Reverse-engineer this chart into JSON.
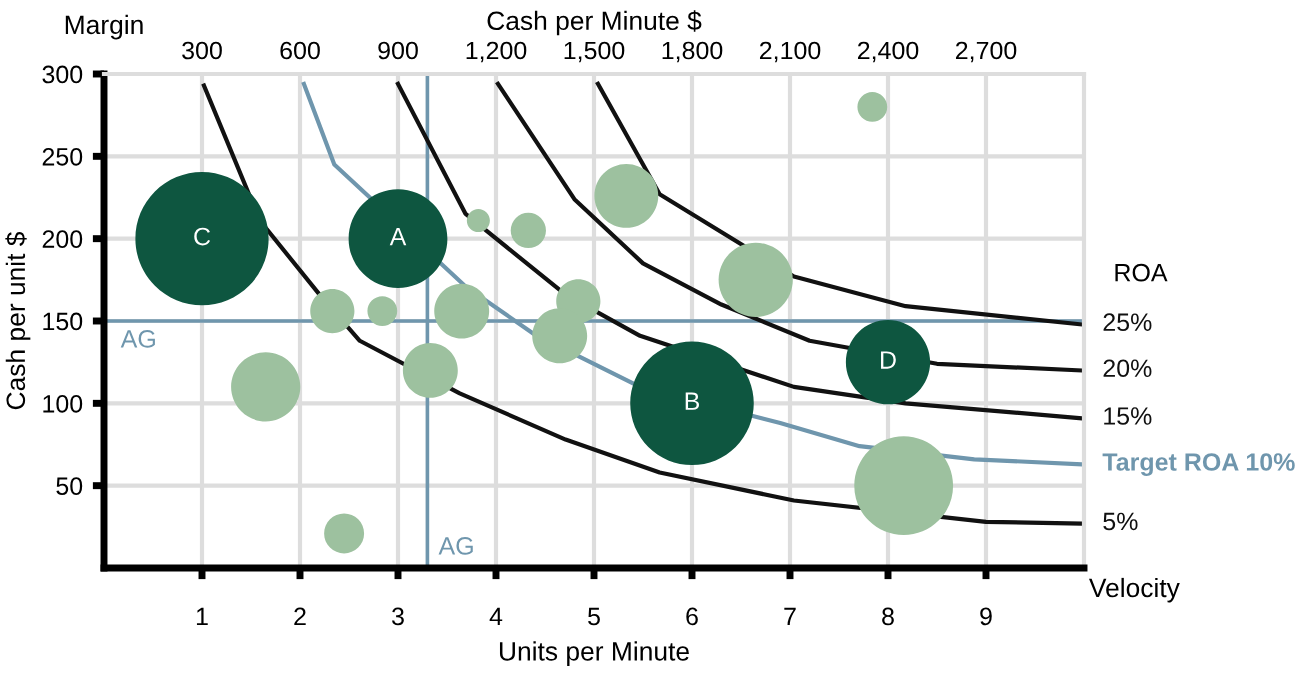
{
  "chart_data": {
    "type": "bubble",
    "xlabel": "Units per Minute",
    "ylabel": "Cash per unit $",
    "x2label": "Cash per Minute $",
    "xlim": [
      0,
      10
    ],
    "xticks": [
      1,
      2,
      3,
      4,
      5,
      6,
      7,
      8,
      9
    ],
    "ylim": [
      0,
      300
    ],
    "yticks": [
      50,
      100,
      150,
      200,
      250,
      300
    ],
    "x2lim": [
      0,
      3000
    ],
    "x2ticks": [
      {
        "value": 300,
        "label": "300"
      },
      {
        "value": 600,
        "label": "600"
      },
      {
        "value": 900,
        "label": "900"
      },
      {
        "value": 1200,
        "label": "1,200"
      },
      {
        "value": 1500,
        "label": "1,500"
      },
      {
        "value": 1800,
        "label": "1,800"
      },
      {
        "value": 2100,
        "label": "2,100"
      },
      {
        "value": 2400,
        "label": "2,400"
      },
      {
        "value": 2700,
        "label": "2,700"
      }
    ],
    "grid": true,
    "series": [
      {
        "type": "line",
        "name": "5%",
        "color": "#111111",
        "x": [
          1.02,
          1.59,
          2.2,
          2.61,
          3.63,
          4.71,
          5.67,
          7.04,
          9.0,
          9.96
        ],
        "values": [
          293,
          211,
          166,
          138,
          106,
          78,
          58,
          41,
          28,
          27
        ]
      },
      {
        "type": "line",
        "name": "Target ROA 10%",
        "color": "#6f96ad",
        "x": [
          2.04,
          2.35,
          3.69,
          4.39,
          5.47,
          6.9,
          7.71,
          8.88,
          9.96
        ],
        "values": [
          294,
          245,
          171,
          142,
          110,
          88,
          74,
          66,
          63
        ]
      },
      {
        "type": "line",
        "name": "15%",
        "color": "#111111",
        "x": [
          3.0,
          3.69,
          4.71,
          5.47,
          7.04,
          8.18,
          9.96
        ],
        "values": [
          294,
          215,
          166,
          141,
          110,
          100,
          91
        ]
      },
      {
        "type": "line",
        "name": "20%",
        "color": "#111111",
        "x": [
          4.02,
          4.8,
          5.5,
          6.3,
          7.2,
          8.5,
          9.96
        ],
        "values": [
          294,
          224,
          185,
          160,
          138,
          124,
          120
        ]
      },
      {
        "type": "line",
        "name": "25%",
        "color": "#111111",
        "x": [
          5.04,
          5.67,
          7.04,
          8.18,
          9.96
        ],
        "values": [
          294,
          227,
          177,
          159,
          148
        ]
      },
      {
        "color": "#0e5640",
        "x": [
          1.0,
          3.0,
          6.0,
          8.0
        ],
        "values": [
          200,
          200,
          100,
          125
        ],
        "sizes": [
          1,
          0.55,
          0.86,
          0.4
        ]
      },
      {
        "color": "#9dc19f",
        "x": [
          3.82,
          4.33,
          5.33,
          7.84,
          6.65,
          2.33,
          2.84,
          3.65,
          4.84,
          4.65,
          3.33,
          1.65,
          2.45,
          8.16
        ],
        "values": [
          211,
          205,
          226,
          280,
          175,
          156,
          156,
          156,
          162,
          141,
          120,
          110,
          21,
          50
        ],
        "sizes": [
          0.03,
          0.07,
          0.23,
          0.05,
          0.31,
          0.11,
          0.05,
          0.17,
          0.11,
          0.17,
          0.17,
          0.27,
          0.09,
          0.55
        ]
      }
    ],
    "ref_lines": [
      {
        "axis": "y",
        "value": 150,
        "label": "AG",
        "color": "#6f96ad"
      },
      {
        "axis": "x",
        "value": 3.3,
        "label": "AG",
        "color": "#6f96ad"
      }
    ],
    "annotations": [
      {
        "text": "C",
        "x": 1.0,
        "y": 200
      },
      {
        "text": "A",
        "x": 3.0,
        "y": 200
      },
      {
        "text": "B",
        "x": 6.0,
        "y": 100
      },
      {
        "text": "D",
        "x": 8.0,
        "y": 125
      },
      "Margin",
      "Velocity",
      "ROA"
    ]
  }
}
